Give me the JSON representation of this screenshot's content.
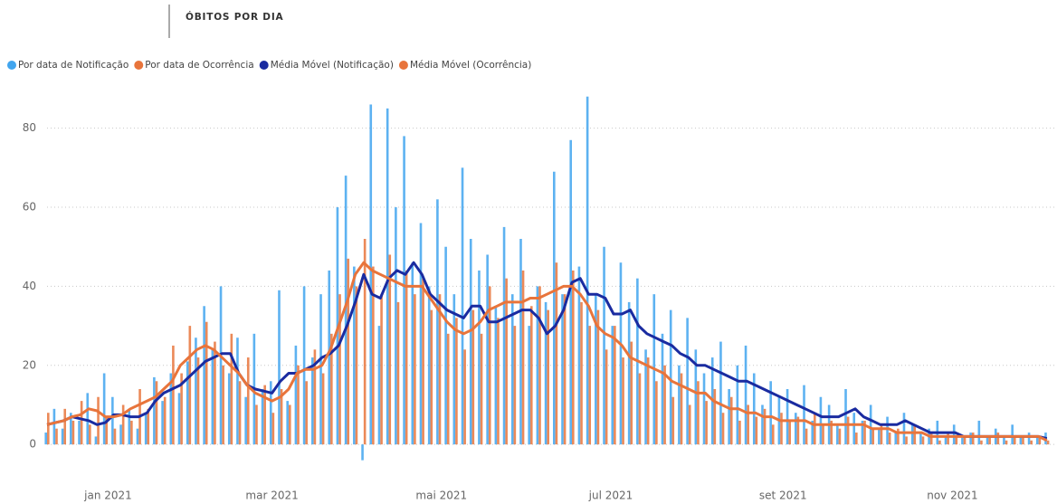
{
  "chart_data": {
    "type": "combo",
    "title": "ÓBITOS POR DIA",
    "x": [
      0,
      3,
      6,
      9,
      12,
      15,
      18,
      21,
      24,
      27,
      30,
      33,
      36,
      39,
      42,
      45,
      48,
      51,
      54,
      57,
      60,
      63,
      66,
      69,
      72,
      75,
      78,
      81,
      84,
      87,
      90,
      93,
      96,
      99,
      102,
      105,
      108,
      111,
      114,
      117,
      120,
      123,
      126,
      129,
      132,
      135,
      138,
      141,
      144,
      147,
      150,
      153,
      156,
      159,
      162,
      165,
      168,
      171,
      174,
      177,
      180,
      183,
      186,
      189,
      192,
      195,
      198,
      201,
      204,
      207,
      210,
      213,
      216,
      219,
      222,
      225,
      228,
      231,
      234,
      237,
      240,
      243,
      246,
      249,
      252,
      255,
      258,
      261,
      264,
      267,
      270,
      273,
      276,
      279,
      282,
      285,
      288,
      291,
      294,
      297,
      300,
      303,
      306,
      309,
      312,
      315,
      318,
      321,
      324,
      327,
      330,
      333,
      336,
      339,
      342,
      345,
      348,
      351,
      354,
      357,
      360
    ],
    "xlim": [
      0,
      363
    ],
    "xticks": [
      {
        "value": 22,
        "label": "jan 2021"
      },
      {
        "value": 81,
        "label": "mar 2021"
      },
      {
        "value": 142,
        "label": "mai 2021"
      },
      {
        "value": 203,
        "label": "jul 2021"
      },
      {
        "value": 265,
        "label": "set 2021"
      },
      {
        "value": 326,
        "label": "nov 2021"
      }
    ],
    "ylim": [
      -5,
      90
    ],
    "yticks": [
      0,
      20,
      40,
      60,
      80
    ],
    "grid": true,
    "legend": "top-left",
    "series": [
      {
        "name": "Por data de Notificação",
        "type": "bar",
        "color": "#41a5ee",
        "values": [
          3,
          9,
          4,
          8,
          6,
          13,
          2,
          18,
          12,
          5,
          9,
          4,
          8,
          17,
          11,
          18,
          13,
          21,
          27,
          35,
          24,
          40,
          18,
          27,
          12,
          28,
          14,
          16,
          39,
          11,
          25,
          40,
          22,
          38,
          44,
          60,
          68,
          45,
          -4,
          86,
          30,
          85,
          60,
          78,
          46,
          56,
          40,
          62,
          50,
          38,
          70,
          52,
          44,
          48,
          35,
          55,
          38,
          52,
          30,
          40,
          36,
          69,
          38,
          77,
          45,
          88,
          38,
          50,
          30,
          46,
          36,
          42,
          24,
          38,
          28,
          34,
          20,
          32,
          24,
          18,
          22,
          26,
          14,
          20,
          25,
          18,
          10,
          16,
          12,
          14,
          8,
          15,
          6,
          12,
          10,
          5,
          14,
          8,
          6,
          10,
          4,
          7,
          3,
          8,
          5,
          3,
          4,
          6,
          2,
          5,
          2,
          3,
          6,
          2,
          4,
          2,
          5,
          2,
          3,
          2,
          3
        ]
      },
      {
        "name": "Por data de Ocorrência",
        "type": "bar",
        "color": "#e8743b",
        "values": [
          8,
          4,
          9,
          6,
          11,
          5,
          12,
          7,
          4,
          10,
          6,
          14,
          9,
          16,
          12,
          25,
          18,
          30,
          22,
          31,
          26,
          20,
          28,
          16,
          22,
          10,
          15,
          8,
          14,
          10,
          20,
          16,
          24,
          18,
          28,
          38,
          47,
          40,
          52,
          45,
          38,
          48,
          36,
          44,
          38,
          42,
          34,
          38,
          28,
          32,
          24,
          34,
          28,
          40,
          32,
          42,
          30,
          44,
          35,
          40,
          34,
          46,
          38,
          44,
          36,
          30,
          34,
          24,
          30,
          22,
          26,
          18,
          22,
          16,
          20,
          12,
          18,
          10,
          16,
          11,
          14,
          8,
          12,
          6,
          10,
          7,
          9,
          5,
          8,
          6,
          7,
          4,
          8,
          5,
          6,
          4,
          7,
          3,
          6,
          4,
          5,
          3,
          4,
          2,
          5,
          2,
          3,
          1,
          3,
          2,
          2,
          3,
          1,
          2,
          3,
          1,
          2,
          2,
          1,
          2,
          1
        ]
      },
      {
        "name": "Média Móvel (Notificação)",
        "type": "line",
        "color": "#1a2ba0",
        "values": [
          5,
          5.5,
          6,
          7,
          6.5,
          6,
          5,
          5.5,
          7.5,
          7.5,
          7,
          7,
          8,
          11,
          13,
          14,
          15,
          17,
          19,
          21,
          22,
          23,
          23,
          18,
          15,
          14,
          13.5,
          13,
          16,
          18,
          18,
          19,
          20,
          22,
          23,
          25,
          30,
          36,
          43,
          38,
          37,
          42,
          44,
          43,
          46,
          43,
          38,
          36,
          34,
          33,
          32,
          35,
          35,
          31,
          31,
          32,
          33,
          34,
          34,
          32,
          28,
          30,
          34,
          41,
          42,
          38,
          38,
          37,
          33,
          33,
          34,
          30,
          28,
          27,
          26,
          25,
          23,
          22,
          20,
          20,
          19,
          18,
          17,
          16,
          16,
          15,
          14,
          13,
          12,
          11,
          10,
          9,
          8,
          7,
          7,
          7,
          8,
          9,
          7,
          6,
          5,
          5,
          5,
          6,
          5,
          4,
          3,
          3,
          3,
          3,
          2,
          2,
          2,
          2,
          2,
          2,
          2,
          2,
          2,
          2,
          1.5
        ]
      },
      {
        "name": "Média Móvel (Ocorrência)",
        "type": "line",
        "color": "#e8743b",
        "values": [
          5,
          5.5,
          6,
          7,
          7.5,
          9,
          8.5,
          7,
          7,
          7.5,
          9,
          10,
          11,
          12,
          14,
          16,
          20,
          22,
          24,
          25,
          24,
          22,
          20,
          18,
          15,
          13,
          12,
          11,
          12,
          14,
          18,
          19,
          19,
          20,
          24,
          30,
          36,
          43,
          46,
          44,
          43,
          42,
          41,
          40,
          40,
          40,
          37,
          34,
          31,
          29,
          28,
          29,
          31,
          34,
          35,
          36,
          36,
          36,
          37,
          37,
          38,
          39,
          40,
          40,
          38,
          35,
          30,
          28,
          27,
          25,
          22,
          21,
          20,
          19,
          18,
          16,
          15,
          14,
          13,
          13,
          11,
          10,
          9,
          9,
          8,
          8,
          7,
          7,
          6,
          6,
          6,
          6,
          5,
          5,
          5,
          5,
          5,
          5,
          5,
          4,
          4,
          4,
          3,
          3,
          3,
          3,
          2,
          2,
          2,
          2,
          2,
          2,
          2,
          2,
          2,
          2,
          2,
          2,
          2,
          2,
          1
        ]
      }
    ]
  }
}
